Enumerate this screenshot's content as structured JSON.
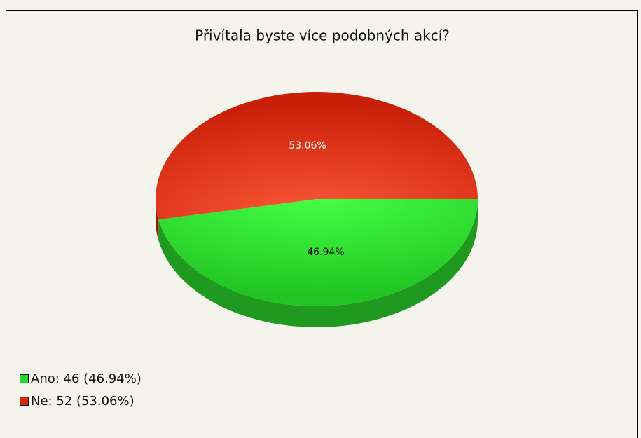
{
  "chart_data": {
    "type": "pie",
    "title": "Přivítala byste více podobných akcí?",
    "categories": [
      "Ano",
      "Ne"
    ],
    "values": [
      46.94,
      53.06
    ],
    "value_labels": [
      "46.94%",
      "53.06%"
    ],
    "legend": [
      "Ano: 46 (46.94%)",
      "Ne: 52 (53.06%)"
    ],
    "colors": [
      "#2bd52b",
      "#d42a0c"
    ],
    "label_colors": [
      "#000000",
      "#ffffff"
    ]
  }
}
